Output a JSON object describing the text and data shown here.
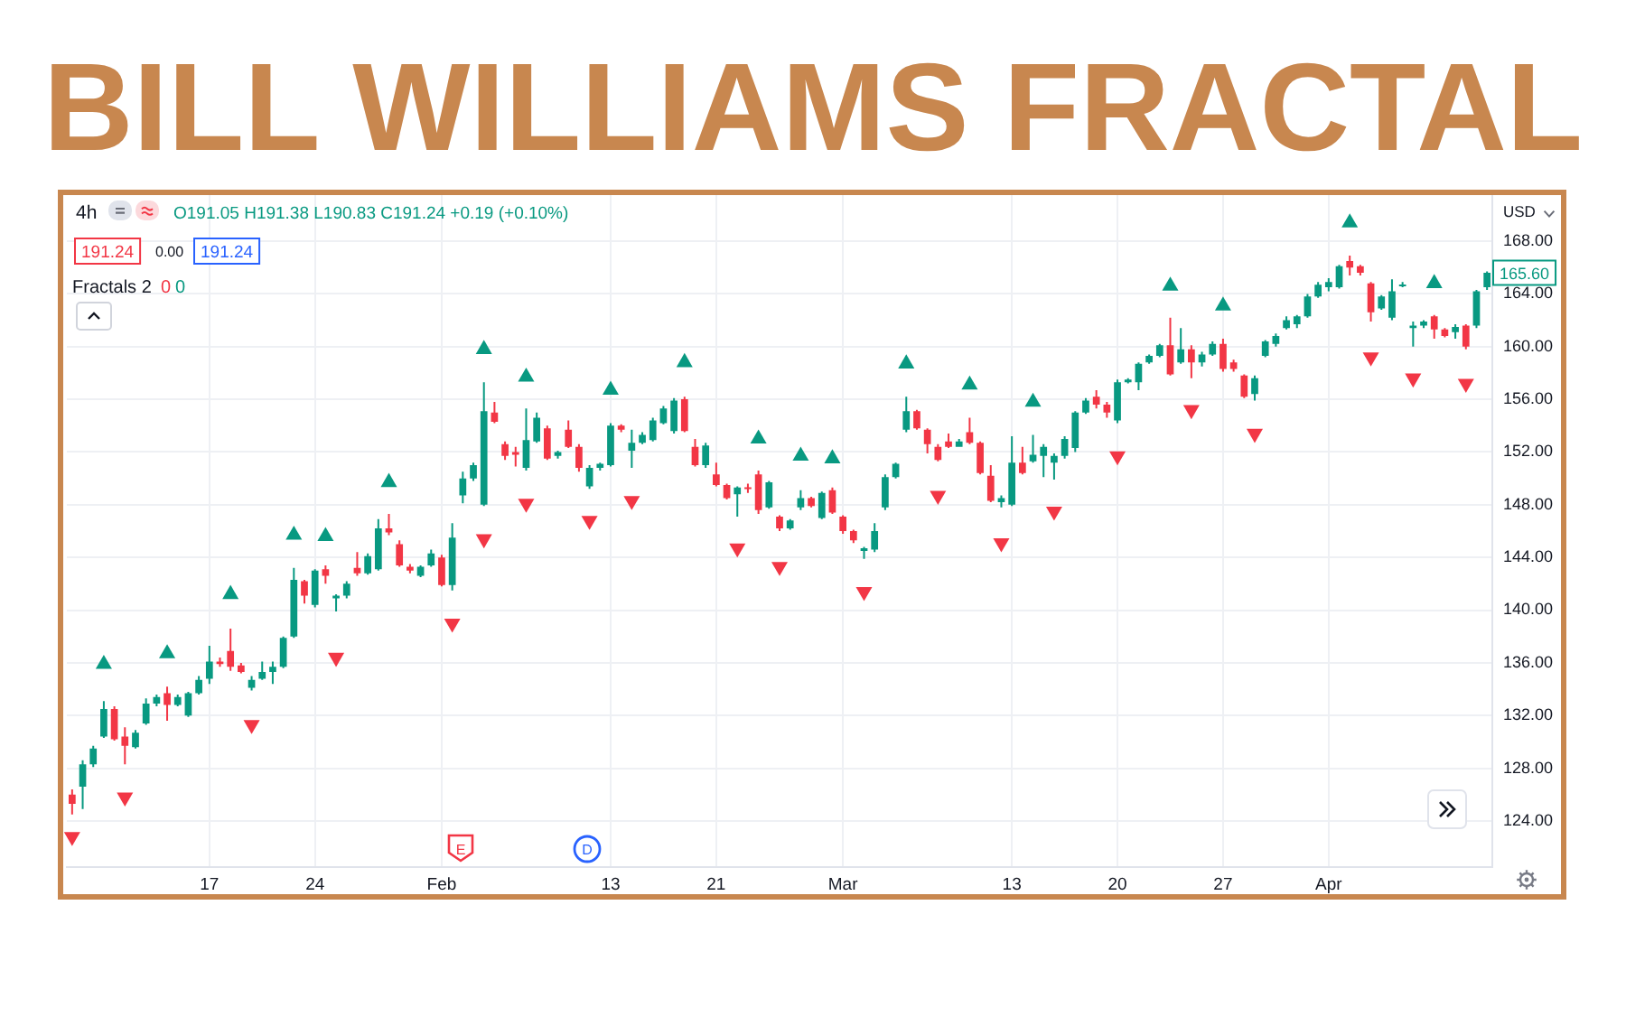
{
  "chart_data": {
    "type": "candlestick",
    "title": "BILL WILLIAMS FRACTAL",
    "categories": [
      null,
      null,
      null,
      null,
      null,
      null,
      null,
      null,
      null,
      null,
      null,
      null,
      null,
      "17",
      null,
      null,
      null,
      null,
      null,
      null,
      null,
      null,
      null,
      "24",
      null,
      null,
      null,
      null,
      null,
      null,
      null,
      null,
      null,
      null,
      null,
      "Feb",
      null,
      null,
      null,
      null,
      null,
      null,
      null,
      null,
      null,
      null,
      null,
      null,
      null,
      null,
      null,
      "13",
      null,
      null,
      null,
      null,
      null,
      null,
      null,
      null,
      null,
      "21",
      null,
      null,
      null,
      null,
      null,
      null,
      null,
      null,
      null,
      null,
      null,
      "Mar",
      null,
      null,
      null,
      null,
      null,
      null,
      null,
      null,
      null,
      null,
      null,
      null,
      null,
      null,
      null,
      "13",
      null,
      null,
      null,
      null,
      null,
      null,
      null,
      null,
      null,
      "20",
      null,
      null,
      null,
      null,
      null,
      null,
      null,
      null,
      null,
      "27",
      null,
      null,
      null,
      null,
      null,
      null,
      null,
      null,
      null,
      "Apr",
      null,
      null,
      null,
      null,
      null,
      null,
      null,
      null,
      null,
      null,
      null,
      null,
      null,
      null,
      null
    ],
    "ohlc": [
      [
        126.0,
        126.4,
        124.5,
        125.3
      ],
      [
        126.6,
        128.6,
        124.9,
        128.3
      ],
      [
        128.3,
        129.7,
        128.1,
        129.5
      ],
      [
        130.4,
        133.1,
        130.3,
        132.5
      ],
      [
        132.5,
        132.7,
        130.1,
        130.2
      ],
      [
        130.4,
        131.1,
        128.3,
        129.7
      ],
      [
        129.6,
        130.9,
        129.5,
        130.7
      ],
      [
        131.4,
        133.3,
        131.3,
        132.9
      ],
      [
        132.9,
        133.6,
        132.7,
        133.4
      ],
      [
        133.7,
        134.2,
        131.6,
        132.8
      ],
      [
        132.8,
        133.6,
        132.7,
        133.4
      ],
      [
        132.0,
        133.8,
        131.9,
        133.7
      ],
      [
        133.7,
        135.0,
        133.6,
        134.7
      ],
      [
        134.8,
        137.3,
        134.4,
        136.1
      ],
      [
        136.1,
        136.4,
        135.7,
        135.9
      ],
      [
        136.9,
        138.6,
        135.4,
        135.7
      ],
      [
        135.8,
        136.0,
        135.2,
        135.3
      ],
      [
        134.1,
        135.0,
        133.9,
        134.7
      ],
      [
        134.8,
        136.1,
        134.7,
        135.3
      ],
      [
        135.3,
        136.1,
        134.4,
        135.7
      ],
      [
        135.7,
        138.0,
        135.6,
        137.9
      ],
      [
        138.0,
        143.2,
        137.9,
        142.3
      ],
      [
        142.2,
        142.3,
        140.5,
        141.1
      ],
      [
        140.4,
        143.1,
        140.2,
        143.0
      ],
      [
        143.1,
        143.4,
        142.0,
        142.6
      ],
      [
        140.9,
        141.2,
        139.9,
        141.1
      ],
      [
        141.1,
        142.2,
        140.9,
        142.0
      ],
      [
        143.2,
        144.4,
        142.6,
        142.8
      ],
      [
        142.8,
        144.3,
        142.7,
        144.1
      ],
      [
        143.1,
        146.9,
        143.0,
        146.2
      ],
      [
        146.2,
        147.3,
        145.7,
        145.9
      ],
      [
        145.0,
        145.3,
        143.3,
        143.4
      ],
      [
        143.3,
        143.5,
        142.8,
        143.0
      ],
      [
        142.6,
        143.4,
        142.5,
        143.3
      ],
      [
        143.4,
        144.6,
        143.3,
        144.3
      ],
      [
        144.0,
        144.2,
        141.8,
        141.9
      ],
      [
        141.9,
        146.6,
        141.5,
        145.5
      ],
      [
        148.7,
        150.5,
        148.1,
        150.0
      ],
      [
        150.0,
        151.2,
        149.8,
        151.0
      ],
      [
        148.0,
        157.3,
        147.9,
        155.1
      ],
      [
        155.0,
        155.8,
        154.2,
        154.3
      ],
      [
        152.6,
        152.8,
        151.4,
        151.7
      ],
      [
        152.0,
        152.4,
        150.9,
        151.8
      ],
      [
        150.8,
        155.3,
        150.6,
        152.9
      ],
      [
        152.8,
        155.0,
        152.7,
        154.6
      ],
      [
        153.8,
        154.0,
        151.4,
        151.5
      ],
      [
        151.7,
        152.1,
        151.5,
        152.0
      ],
      [
        153.7,
        154.4,
        152.3,
        152.4
      ],
      [
        152.4,
        152.6,
        150.5,
        150.8
      ],
      [
        149.4,
        151.0,
        149.2,
        150.8
      ],
      [
        150.8,
        151.2,
        150.6,
        151.1
      ],
      [
        151.0,
        154.2,
        150.9,
        154.0
      ],
      [
        154.0,
        154.1,
        153.5,
        153.7
      ],
      [
        152.1,
        153.7,
        150.8,
        152.7
      ],
      [
        152.7,
        153.5,
        152.6,
        153.3
      ],
      [
        152.9,
        154.6,
        152.8,
        154.4
      ],
      [
        154.2,
        155.5,
        154.1,
        155.3
      ],
      [
        153.6,
        156.1,
        153.4,
        155.9
      ],
      [
        156.0,
        156.2,
        153.5,
        153.6
      ],
      [
        152.4,
        153.0,
        150.9,
        151.0
      ],
      [
        151.0,
        152.7,
        150.8,
        152.5
      ],
      [
        150.3,
        151.2,
        149.4,
        149.5
      ],
      [
        149.5,
        149.6,
        148.4,
        148.5
      ],
      [
        148.8,
        149.4,
        147.1,
        149.3
      ],
      [
        149.3,
        149.6,
        148.9,
        149.2
      ],
      [
        150.3,
        150.6,
        147.3,
        147.6
      ],
      [
        147.8,
        149.8,
        147.7,
        149.7
      ],
      [
        147.1,
        147.2,
        146.0,
        146.2
      ],
      [
        146.2,
        146.9,
        146.1,
        146.8
      ],
      [
        147.8,
        149.1,
        147.6,
        148.5
      ],
      [
        148.5,
        148.6,
        147.8,
        147.9
      ],
      [
        147.0,
        149.0,
        146.9,
        148.9
      ],
      [
        149.1,
        149.3,
        147.3,
        147.4
      ],
      [
        147.1,
        147.2,
        145.8,
        146.0
      ],
      [
        146.0,
        146.1,
        145.1,
        145.3
      ],
      [
        144.5,
        144.8,
        143.9,
        144.7
      ],
      [
        144.6,
        146.6,
        144.4,
        146.0
      ],
      [
        147.8,
        150.3,
        147.6,
        150.1
      ],
      [
        150.1,
        151.2,
        150.0,
        151.1
      ],
      [
        153.7,
        156.2,
        153.5,
        155.1
      ],
      [
        155.1,
        155.2,
        153.7,
        153.8
      ],
      [
        153.7,
        153.8,
        151.9,
        152.6
      ],
      [
        152.4,
        152.6,
        151.3,
        151.4
      ],
      [
        152.8,
        153.4,
        152.3,
        152.4
      ],
      [
        152.4,
        153.0,
        152.4,
        152.8
      ],
      [
        153.5,
        154.6,
        152.6,
        152.7
      ],
      [
        152.7,
        152.8,
        150.3,
        150.4
      ],
      [
        150.2,
        151.0,
        148.2,
        148.3
      ],
      [
        148.2,
        148.7,
        147.8,
        148.5
      ],
      [
        148.0,
        153.2,
        147.9,
        151.2
      ],
      [
        151.2,
        152.4,
        150.3,
        150.4
      ],
      [
        151.3,
        153.3,
        151.2,
        151.8
      ],
      [
        151.7,
        152.6,
        150.1,
        152.4
      ],
      [
        151.2,
        151.9,
        149.9,
        151.7
      ],
      [
        151.7,
        153.2,
        151.5,
        153.0
      ],
      [
        152.3,
        155.1,
        152.0,
        155.0
      ],
      [
        155.0,
        156.1,
        154.9,
        155.9
      ],
      [
        156.2,
        156.7,
        155.3,
        155.6
      ],
      [
        155.6,
        155.8,
        154.6,
        155.0
      ],
      [
        154.4,
        157.5,
        154.2,
        157.3
      ],
      [
        157.3,
        157.6,
        157.2,
        157.5
      ],
      [
        157.3,
        158.8,
        156.7,
        158.7
      ],
      [
        158.8,
        159.4,
        158.7,
        159.3
      ],
      [
        159.3,
        160.2,
        159.2,
        160.1
      ],
      [
        160.1,
        162.2,
        157.8,
        157.9
      ],
      [
        158.8,
        161.4,
        158.7,
        159.8
      ],
      [
        159.8,
        160.1,
        157.6,
        158.8
      ],
      [
        158.8,
        159.6,
        158.5,
        159.4
      ],
      [
        159.4,
        160.4,
        159.3,
        160.2
      ],
      [
        160.2,
        160.6,
        158.1,
        158.3
      ],
      [
        158.8,
        159.0,
        158.1,
        158.3
      ],
      [
        157.8,
        157.9,
        156.1,
        156.2
      ],
      [
        156.4,
        157.8,
        155.9,
        157.6
      ],
      [
        159.3,
        160.5,
        159.2,
        160.4
      ],
      [
        160.2,
        161.0,
        160.0,
        160.8
      ],
      [
        161.4,
        162.3,
        161.3,
        162.0
      ],
      [
        161.7,
        162.4,
        161.4,
        162.3
      ],
      [
        162.3,
        164.0,
        162.2,
        163.8
      ],
      [
        163.8,
        164.9,
        163.7,
        164.7
      ],
      [
        164.5,
        165.2,
        164.2,
        164.9
      ],
      [
        164.5,
        166.2,
        164.4,
        166.1
      ],
      [
        166.5,
        166.9,
        165.4,
        166.0
      ],
      [
        166.1,
        166.2,
        165.4,
        165.6
      ],
      [
        164.8,
        164.9,
        161.9,
        162.6
      ],
      [
        162.9,
        163.9,
        162.8,
        163.8
      ],
      [
        162.2,
        165.1,
        162.0,
        164.2
      ],
      [
        164.6,
        164.9,
        164.5,
        164.7
      ],
      [
        161.4,
        161.9,
        160.0,
        161.6
      ],
      [
        161.6,
        162.0,
        161.4,
        161.9
      ],
      [
        162.3,
        162.4,
        160.6,
        161.3
      ],
      [
        161.3,
        161.4,
        160.7,
        160.8
      ],
      [
        161.1,
        161.7,
        160.6,
        161.5
      ],
      [
        161.6,
        161.7,
        159.8,
        160.0
      ],
      [
        161.6,
        164.3,
        161.4,
        164.2
      ],
      [
        164.5,
        165.7,
        164.3,
        165.6
      ]
    ],
    "colors": [
      "#f23645",
      "#089981",
      "#089981",
      "#089981",
      "#f23645",
      "#f23645",
      "#089981",
      "#089981",
      "#089981",
      "#f23645",
      "#089981",
      "#089981",
      "#089981",
      "#089981",
      "#f23645",
      "#f23645",
      "#f23645",
      "#089981",
      "#089981",
      "#089981",
      "#089981",
      "#089981",
      "#f23645",
      "#089981",
      "#f23645",
      "#089981",
      "#089981",
      "#f23645",
      "#089981",
      "#089981",
      "#f23645",
      "#f23645",
      "#f23645",
      "#089981",
      "#089981",
      "#f23645",
      "#089981",
      "#089981",
      "#089981",
      "#089981",
      "#f23645",
      "#f23645",
      "#f23645",
      "#089981",
      "#089981",
      "#f23645",
      "#089981",
      "#f23645",
      "#f23645",
      "#089981",
      "#089981",
      "#089981",
      "#f23645",
      "#089981",
      "#089981",
      "#089981",
      "#089981",
      "#089981",
      "#f23645",
      "#f23645",
      "#089981",
      "#f23645",
      "#f23645",
      "#089981",
      "#f23645",
      "#f23645",
      "#089981",
      "#f23645",
      "#089981",
      "#089981",
      "#f23645",
      "#089981",
      "#f23645",
      "#f23645",
      "#f23645",
      "#089981",
      "#089981",
      "#089981",
      "#089981",
      "#089981",
      "#f23645",
      "#f23645",
      "#f23645",
      "#f23645",
      "#089981",
      "#f23645",
      "#f23645",
      "#f23645",
      "#089981",
      "#089981",
      "#f23645",
      "#089981",
      "#089981",
      "#089981",
      "#089981",
      "#089981",
      "#089981",
      "#f23645",
      "#f23645",
      "#089981",
      "#089981",
      "#089981",
      "#089981",
      "#089981",
      "#f23645",
      "#089981",
      "#f23645",
      "#089981",
      "#089981",
      "#f23645",
      "#f23645",
      "#f23645",
      "#089981",
      "#089981",
      "#089981",
      "#089981",
      "#089981",
      "#089981",
      "#089981",
      "#089981",
      "#089981",
      "#f23645",
      "#f23645",
      "#f23645",
      "#089981",
      "#089981",
      "#089981",
      "#089981",
      "#089981",
      "#f23645",
      "#f23645",
      "#089981",
      "#f23645",
      "#089981",
      "#089981"
    ],
    "series": [
      {
        "type": "scatter",
        "color": "#089981",
        "values": [
          null,
          null,
          null,
          135.9,
          null,
          null,
          null,
          null,
          null,
          136.7,
          null,
          null,
          null,
          null,
          null,
          141.2,
          null,
          null,
          null,
          null,
          null,
          145.7,
          null,
          null,
          145.6,
          null,
          null,
          null,
          null,
          null,
          149.7,
          null,
          null,
          null,
          null,
          null,
          null,
          null,
          null,
          159.8,
          null,
          null,
          null,
          157.7,
          null,
          null,
          null,
          null,
          null,
          null,
          null,
          156.7,
          null,
          null,
          null,
          null,
          null,
          null,
          158.8,
          null,
          null,
          null,
          null,
          null,
          null,
          153.0,
          null,
          null,
          null,
          151.7,
          null,
          null,
          151.5,
          null,
          null,
          null,
          null,
          null,
          null,
          158.7,
          null,
          null,
          null,
          null,
          null,
          157.1,
          null,
          null,
          null,
          null,
          null,
          155.8,
          null,
          null,
          null,
          null,
          null,
          null,
          null,
          null,
          null,
          null,
          null,
          null,
          164.6,
          null,
          null,
          null,
          null,
          163.1,
          null,
          null,
          null,
          null,
          null,
          null,
          null,
          null,
          null,
          null,
          null,
          169.4,
          null,
          null,
          null,
          null,
          null,
          null,
          null,
          164.8,
          null,
          null,
          null,
          null,
          null
        ]
      },
      {
        "type": "scatter",
        "color": "#f23645",
        "values": [
          122.8,
          null,
          null,
          null,
          null,
          125.8,
          null,
          null,
          null,
          null,
          null,
          null,
          null,
          null,
          null,
          null,
          null,
          131.3,
          null,
          null,
          null,
          null,
          null,
          null,
          null,
          136.4,
          null,
          null,
          null,
          null,
          null,
          null,
          null,
          null,
          null,
          null,
          139.0,
          null,
          null,
          145.4,
          null,
          null,
          null,
          148.1,
          null,
          null,
          null,
          null,
          null,
          146.8,
          null,
          null,
          null,
          148.3,
          null,
          null,
          null,
          null,
          null,
          null,
          null,
          null,
          null,
          144.7,
          null,
          null,
          null,
          143.3,
          null,
          null,
          null,
          null,
          null,
          null,
          null,
          141.4,
          null,
          null,
          null,
          null,
          null,
          null,
          148.7,
          null,
          null,
          null,
          null,
          null,
          145.1,
          null,
          null,
          null,
          null,
          147.5,
          null,
          null,
          null,
          null,
          null,
          151.7,
          null,
          null,
          null,
          null,
          null,
          null,
          155.2,
          null,
          null,
          null,
          null,
          null,
          153.4,
          null,
          null,
          null,
          null,
          null,
          null,
          null,
          null,
          null,
          null,
          159.2,
          null,
          null,
          null,
          157.6,
          null,
          null,
          null,
          null,
          157.2,
          null,
          null
        ]
      }
    ],
    "marker": "triangle",
    "ylim": [
      120.5,
      171.5
    ],
    "yticks": [
      {
        "value": 124,
        "label": "124.00"
      },
      {
        "value": 128,
        "label": "128.00"
      },
      {
        "value": 132,
        "label": "132.00"
      },
      {
        "value": 136,
        "label": "136.00"
      },
      {
        "value": 140,
        "label": "140.00"
      },
      {
        "value": 144,
        "label": "144.00"
      },
      {
        "value": 148,
        "label": "148.00"
      },
      {
        "value": 152,
        "label": "152.00"
      },
      {
        "value": 156,
        "label": "156.00"
      },
      {
        "value": 160,
        "label": "160.00"
      },
      {
        "value": 164,
        "label": "164.00"
      },
      {
        "value": 168,
        "label": "168.00"
      }
    ],
    "grid": true,
    "annotations": [
      "4h",
      "O191.05 H191.38 L190.83 C191.24 +0.19 (+0.10%)",
      "191.24",
      "0.00",
      "191.24",
      "Fractals 2",
      "0",
      "0",
      "USD",
      {
        "text": "165.60",
        "y": 165.6
      },
      "E",
      "D"
    ]
  }
}
